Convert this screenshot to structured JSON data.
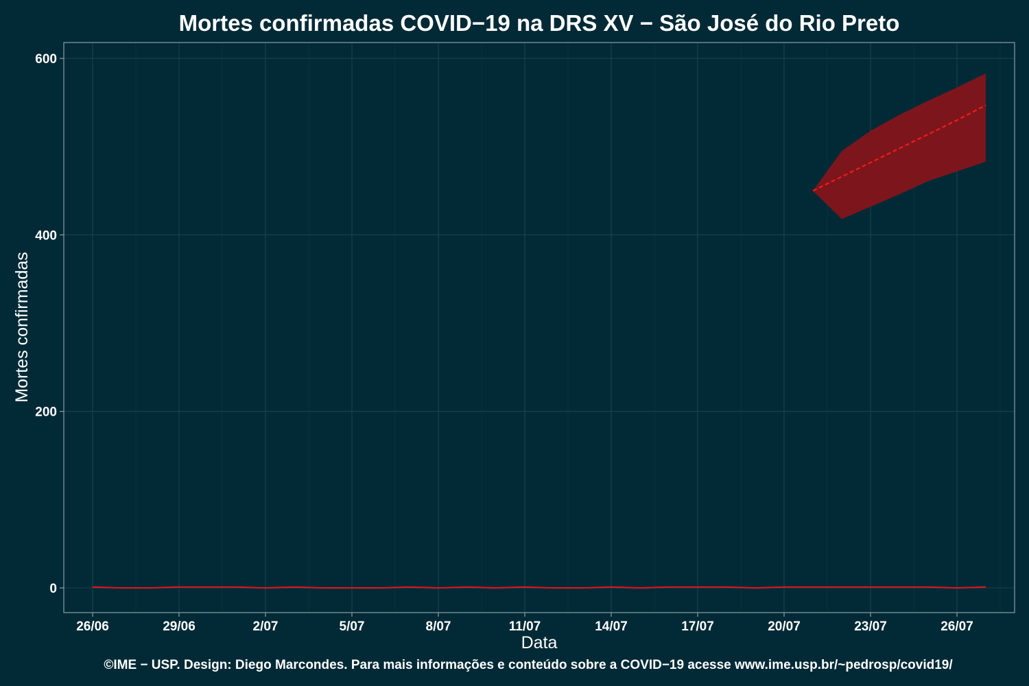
{
  "chart_data": {
    "type": "line",
    "title": "Mortes confirmadas COVID−19 na DRS XV − São José do Rio Preto",
    "xlabel": "Data",
    "ylabel": "Mortes confirmadas",
    "footer": "©IME − USP. Design: Diego Marcondes. Para mais informações e conteúdo sobre a COVID−19 acesse www.ime.usp.br/~pedrosp/covid19/",
    "x_tick_labels": [
      "26/06",
      "29/06",
      "2/07",
      "5/07",
      "8/07",
      "11/07",
      "14/07",
      "17/07",
      "20/07",
      "23/07",
      "26/07"
    ],
    "y_tick_labels": [
      "0",
      "200",
      "400",
      "600"
    ],
    "xlim": [
      "2020-06-25",
      "2020-07-28"
    ],
    "ylim": [
      -28,
      618
    ],
    "y_ticks": [
      0,
      200,
      400,
      600
    ],
    "grid": true,
    "legend": "none",
    "colors": {
      "background": "#012a36",
      "observed_line": "#e8141c",
      "forecast_line": "#ff1a1a",
      "band_fill": "#7d161c"
    },
    "series": [
      {
        "style": "solid",
        "x": [
          "2020-06-26",
          "2020-06-27",
          "2020-06-28",
          "2020-06-29",
          "2020-06-30",
          "2020-07-01",
          "2020-07-02",
          "2020-07-03",
          "2020-07-04",
          "2020-07-05",
          "2020-07-06",
          "2020-07-07",
          "2020-07-08",
          "2020-07-09",
          "2020-07-10",
          "2020-07-11",
          "2020-07-12",
          "2020-07-13",
          "2020-07-14",
          "2020-07-15",
          "2020-07-16",
          "2020-07-17",
          "2020-07-18",
          "2020-07-19",
          "2020-07-20",
          "2020-07-21",
          "2020-07-22",
          "2020-07-23",
          "2020-07-24",
          "2020-07-25",
          "2020-07-26",
          "2020-07-27"
        ],
        "values": [
          1,
          0,
          0,
          1,
          1,
          1,
          0,
          1,
          0,
          0,
          0,
          1,
          0,
          1,
          0,
          1,
          0,
          0,
          1,
          0,
          1,
          1,
          1,
          0,
          1,
          1,
          1,
          1,
          1,
          1,
          0,
          1
        ]
      },
      {
        "style": "dashed",
        "x": [
          "2020-07-21",
          "2020-07-22",
          "2020-07-23",
          "2020-07-24",
          "2020-07-25",
          "2020-07-26",
          "2020-07-27"
        ],
        "values": [
          450,
          466,
          482,
          498,
          514,
          530,
          547
        ],
        "lower": [
          450,
          418,
          432,
          446,
          461,
          472,
          483
        ],
        "upper": [
          450,
          495,
          518,
          536,
          552,
          567,
          583
        ]
      }
    ]
  }
}
